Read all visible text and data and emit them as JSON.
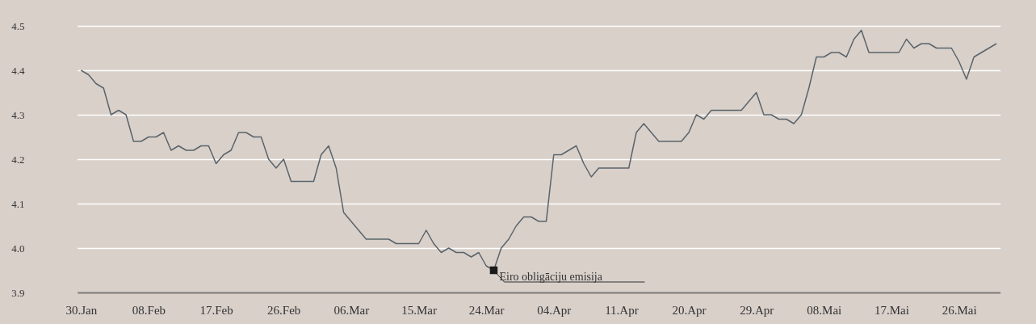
{
  "chart_data": {
    "type": "line",
    "categories": [
      "30.Jan",
      null,
      null,
      null,
      null,
      null,
      null,
      null,
      null,
      "08.Feb",
      null,
      null,
      null,
      null,
      null,
      null,
      null,
      null,
      "17.Feb",
      null,
      null,
      null,
      null,
      null,
      null,
      null,
      null,
      "26.Feb",
      null,
      null,
      null,
      null,
      null,
      null,
      null,
      null,
      "06.Mar",
      null,
      null,
      null,
      null,
      null,
      null,
      null,
      null,
      "15.Mar",
      null,
      null,
      null,
      null,
      null,
      null,
      null,
      null,
      "24.Mar",
      null,
      null,
      null,
      null,
      null,
      null,
      null,
      null,
      "04.Apr",
      null,
      null,
      null,
      null,
      null,
      null,
      null,
      null,
      "11.Apr",
      null,
      null,
      null,
      null,
      null,
      null,
      null,
      null,
      "20.Apr",
      null,
      null,
      null,
      null,
      null,
      null,
      null,
      null,
      "29.Apr",
      null,
      null,
      null,
      null,
      null,
      null,
      null,
      null,
      "08.Mai",
      null,
      null,
      null,
      null,
      null,
      null,
      null,
      null,
      "17.Mai",
      null,
      null,
      null,
      null,
      null,
      null,
      null,
      null,
      "26.Mai",
      null,
      null,
      null,
      null,
      null
    ],
    "series": [
      {
        "color": "#5a646b",
        "values": [
          4.4,
          4.39,
          4.37,
          4.36,
          4.3,
          4.31,
          4.3,
          4.24,
          4.24,
          4.25,
          4.25,
          4.26,
          4.22,
          4.23,
          4.22,
          4.22,
          4.23,
          4.23,
          4.19,
          4.21,
          4.22,
          4.26,
          4.26,
          4.25,
          4.25,
          4.2,
          4.18,
          4.2,
          4.15,
          4.15,
          4.15,
          4.15,
          4.21,
          4.23,
          4.18,
          4.08,
          4.06,
          4.04,
          4.02,
          4.02,
          4.02,
          4.02,
          4.01,
          4.01,
          4.01,
          4.01,
          4.04,
          4.01,
          3.99,
          4.0,
          3.99,
          3.99,
          3.98,
          3.99,
          3.96,
          3.95,
          4.0,
          4.02,
          4.05,
          4.07,
          4.07,
          4.06,
          4.06,
          4.21,
          4.21,
          4.22,
          4.23,
          4.19,
          4.16,
          4.18,
          4.18,
          4.18,
          4.18,
          4.18,
          4.26,
          4.28,
          4.26,
          4.24,
          4.24,
          4.24,
          4.24,
          4.26,
          4.3,
          4.29,
          4.31,
          4.31,
          4.31,
          4.31,
          4.31,
          4.33,
          4.35,
          4.3,
          4.3,
          4.29,
          4.29,
          4.28,
          4.3,
          4.36,
          4.43,
          4.43,
          4.44,
          4.44,
          4.43,
          4.47,
          4.49,
          4.44,
          4.44,
          4.44,
          4.44,
          4.44,
          4.47,
          4.45,
          4.46,
          4.46,
          4.45,
          4.45,
          4.45,
          4.42,
          4.38,
          4.43,
          4.44,
          4.45,
          4.46
        ]
      }
    ],
    "ylim": [
      3.9,
      4.5
    ],
    "yticks": [
      3.9,
      {
        "value": 4,
        "label": "4.0"
      },
      4.1,
      4.2,
      4.3,
      4.4,
      4.5
    ],
    "grid": "y",
    "annotations": [
      "Eiro obligāciju emisija"
    ]
  }
}
